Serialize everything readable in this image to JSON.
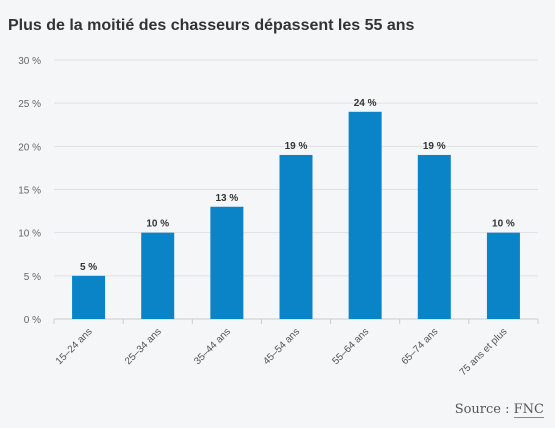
{
  "chart_data": {
    "type": "bar",
    "title": "Plus de la moitié des chasseurs dépassent les 55 ans",
    "categories": [
      "15–24 ans",
      "25–34 ans",
      "35–44 ans",
      "45–54 ans",
      "55–64 ans",
      "65–74 ans",
      "75 ans et plus"
    ],
    "values": [
      5,
      10,
      13,
      19,
      24,
      19,
      10
    ],
    "value_labels": [
      "5 %",
      "10 %",
      "13 %",
      "19 %",
      "24 %",
      "19 %",
      "10 %"
    ],
    "y_ticks": [
      0,
      5,
      10,
      15,
      20,
      25,
      30
    ],
    "y_tick_labels": [
      "0 %",
      "5 %",
      "10 %",
      "15 %",
      "20 %",
      "25 %",
      "30 %"
    ],
    "ylim": [
      0,
      30
    ],
    "grid": true,
    "bar_color": "#0a84c6",
    "xlabel": "",
    "ylabel": ""
  },
  "source": {
    "prefix": "Source : ",
    "name": "FNC"
  }
}
